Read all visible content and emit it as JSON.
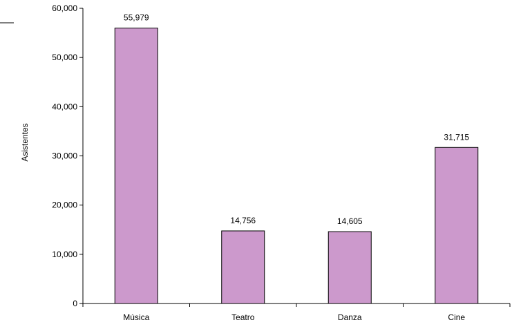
{
  "chart_data": {
    "type": "bar",
    "title": "",
    "xlabel": "",
    "ylabel": "Asistentes",
    "categories": [
      "Música",
      "Teatro",
      "Danza",
      "Cine"
    ],
    "values": [
      55979,
      14756,
      14605,
      31715
    ],
    "value_labels": [
      "55,979",
      "14,756",
      "14,605",
      "31,715"
    ],
    "ylim": [
      0,
      60000
    ],
    "yticks": [
      0,
      10000,
      20000,
      30000,
      40000,
      50000,
      60000
    ],
    "ytick_labels": [
      "0",
      "10,000",
      "20,000",
      "30,000",
      "40,000",
      "50,000",
      "60,000"
    ],
    "grid": false,
    "legend": "none",
    "colors": {
      "bar_fill": "#cc99cc",
      "bar_stroke": "#000000",
      "axis": "#000000",
      "text": "#000000"
    }
  }
}
